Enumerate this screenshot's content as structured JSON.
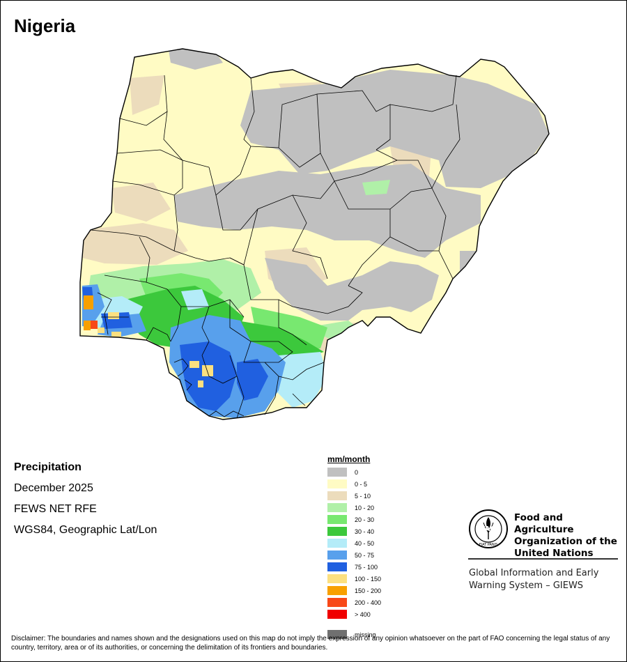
{
  "title": "Nigeria",
  "meta": {
    "variable": "Precipitation",
    "period": "December 2025",
    "source": "FEWS NET RFE",
    "projection": "WGS84, Geographic Lat/Lon"
  },
  "legend": {
    "title": "mm/month",
    "classes": [
      {
        "label": "0",
        "color": "#c0c0c0"
      },
      {
        "label": "0 - 5",
        "color": "#fffbc4"
      },
      {
        "label": "5 - 10",
        "color": "#ecdcbc"
      },
      {
        "label": "10 - 20",
        "color": "#b0f0a8"
      },
      {
        "label": "20 - 30",
        "color": "#78e870"
      },
      {
        "label": "30 - 40",
        "color": "#3cc83c"
      },
      {
        "label": "40 - 50",
        "color": "#b4ecf8"
      },
      {
        "label": "50 - 75",
        "color": "#58a0ec"
      },
      {
        "label": "75 - 100",
        "color": "#2060e0"
      },
      {
        "label": "100 - 150",
        "color": "#fce080"
      },
      {
        "label": "150 - 200",
        "color": "#f8a000"
      },
      {
        "label": "200 - 400",
        "color": "#f84818"
      },
      {
        "label": "> 400",
        "color": "#f00000"
      },
      {
        "label": "missing",
        "color": "#707070"
      }
    ]
  },
  "logo": {
    "org_name": "Food and Agriculture Organization of the United Nations",
    "emblem_text": "FAO",
    "motto": "FIAT PANIS",
    "system_name": "Global Information and Early Warning System – GIEWS"
  },
  "disclaimer": "Disclaimer: The boundaries and names shown and the designations used on this map do not imply the expression of any opinion whatsoever on the part of FAO concerning the legal status of any country, territory, area or of its authorities, or concerning the delimitation of its frontiers and boundaries."
}
